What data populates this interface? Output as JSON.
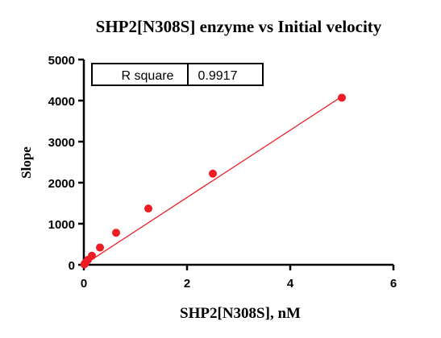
{
  "chart_data": {
    "type": "scatter",
    "title": "SHP2[N308S] enzyme vs Initial velocity",
    "xlabel": "SHP2[N308S], nM",
    "ylabel": "Slope",
    "xlim": [
      0,
      6
    ],
    "ylim": [
      0,
      5000
    ],
    "x_ticks": [
      0,
      2,
      4,
      6
    ],
    "y_ticks": [
      0,
      1000,
      2000,
      3000,
      4000,
      5000
    ],
    "x_tick_labels": [
      "0",
      "2",
      "4",
      "6"
    ],
    "y_tick_labels": [
      "0",
      "1000",
      "2000",
      "3000",
      "4000",
      "5000"
    ],
    "grid": false,
    "series": [
      {
        "x": [
          0.0098,
          0.0195,
          0.039,
          0.078,
          0.156,
          0.3125,
          0.625,
          1.25,
          2.5,
          5.0
        ],
        "y": [
          10,
          30,
          60,
          120,
          220,
          420,
          780,
          1370,
          2220,
          4070
        ],
        "marker_color": "#ee1c24"
      }
    ],
    "fit_line": {
      "x": [
        0,
        5
      ],
      "y": [
        0,
        4100
      ],
      "color": "#ee1c24"
    },
    "stats_table": {
      "label": "R square",
      "value": "0.9917"
    }
  }
}
